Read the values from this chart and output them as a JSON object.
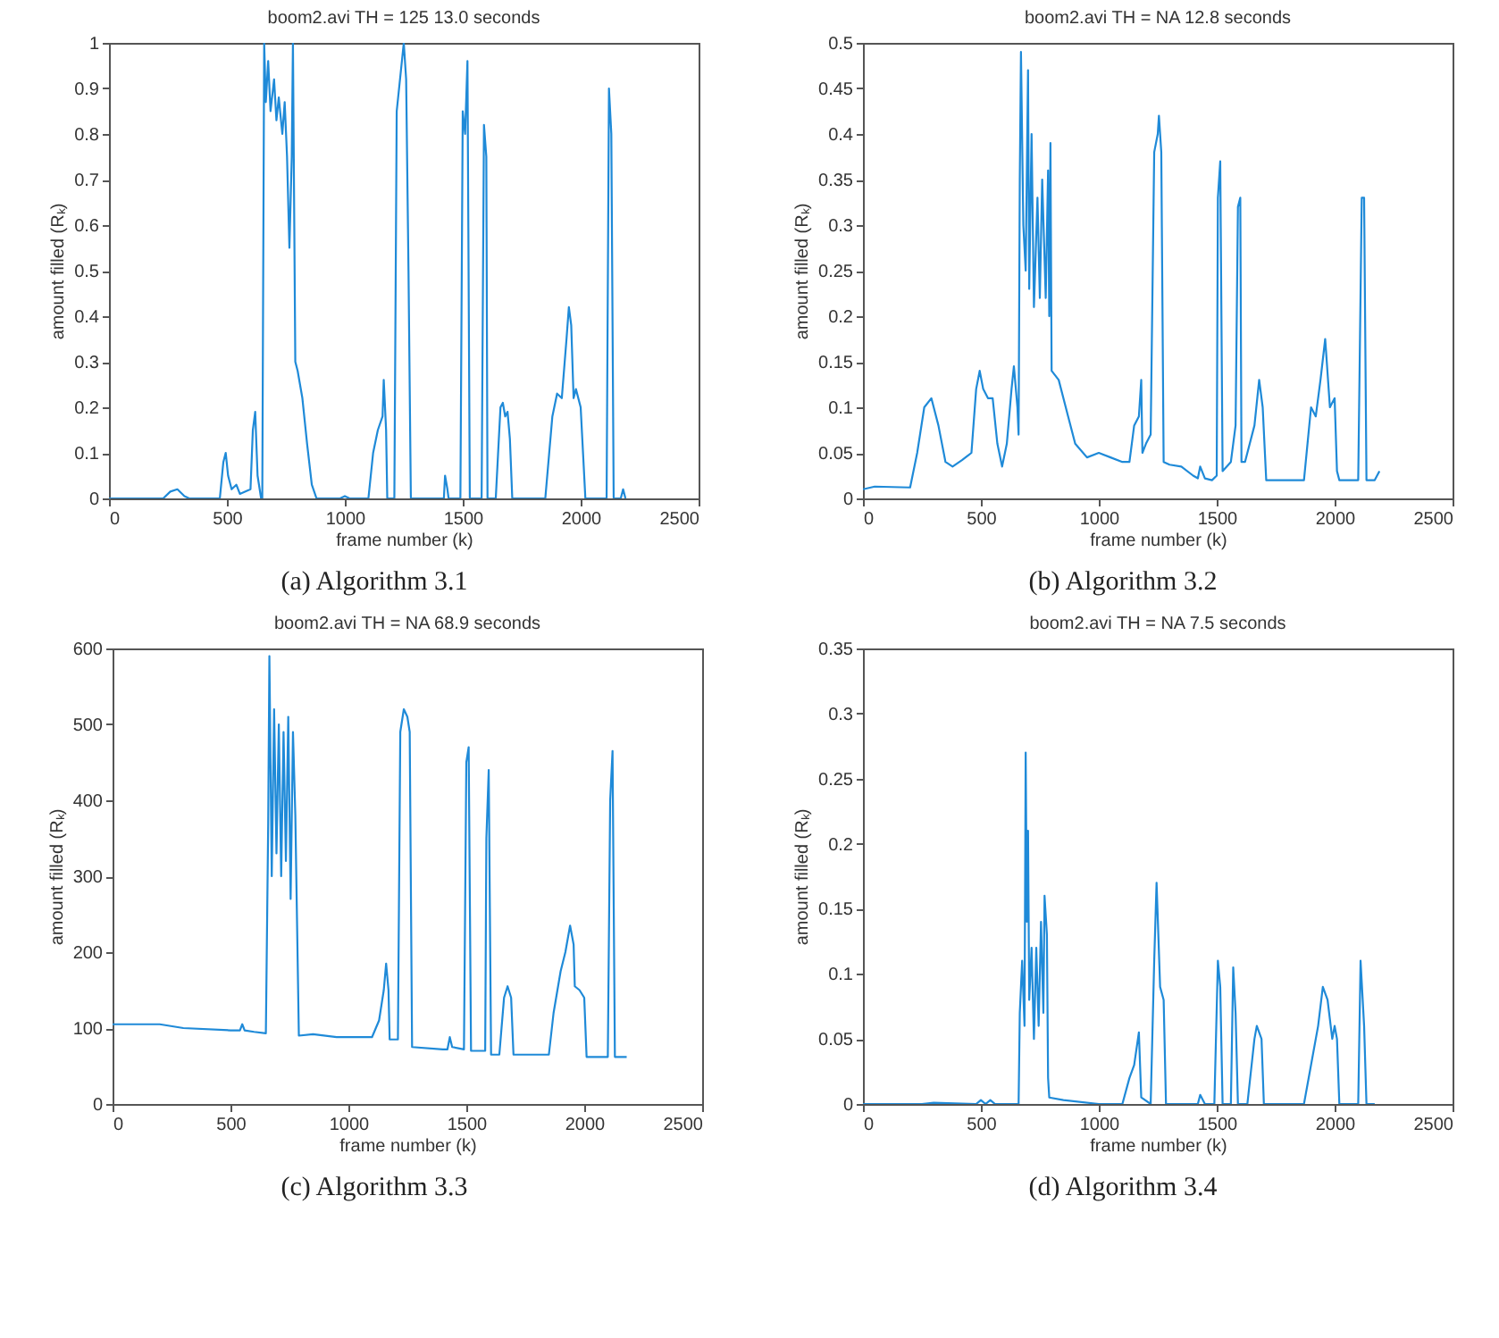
{
  "chart_data": [
    {
      "type": "line",
      "title": "boom2.avi     TH = 125     13.0 seconds",
      "xlabel": "frame number (k)",
      "ylabel": "amount filled (Rₖ)",
      "annotations": [
        "(a)  Algorithm 3.1"
      ],
      "color": "#1f8ad8",
      "xlim": [
        0,
        2500
      ],
      "xticks": [
        0,
        500,
        1000,
        1500,
        2000,
        2500
      ],
      "ylim": [
        0,
        1
      ],
      "yticks": [
        0,
        0.1,
        0.2,
        0.3,
        0.4,
        0.5,
        0.6,
        0.7,
        0.8,
        0.9,
        1
      ],
      "x": [
        0,
        230,
        260,
        290,
        320,
        340,
        470,
        485,
        495,
        505,
        520,
        540,
        555,
        600,
        610,
        620,
        630,
        645,
        650,
        658,
        665,
        675,
        685,
        700,
        710,
        720,
        735,
        745,
        755,
        765,
        775,
        780,
        790,
        800,
        820,
        840,
        860,
        880,
        980,
        1000,
        1020,
        1100,
        1120,
        1140,
        1160,
        1165,
        1175,
        1180,
        1210,
        1220,
        1240,
        1250,
        1260,
        1270,
        1280,
        1420,
        1425,
        1435,
        1440,
        1490,
        1500,
        1510,
        1520,
        1530,
        1580,
        1590,
        1600,
        1605,
        1640,
        1660,
        1670,
        1680,
        1690,
        1700,
        1710,
        1850,
        1880,
        1900,
        1920,
        1940,
        1950,
        1960,
        1970,
        1980,
        2000,
        2020,
        2110,
        2120,
        2130,
        2140,
        2170,
        2180,
        2190
      ],
      "values": [
        0,
        0,
        0.015,
        0.02,
        0.005,
        0,
        0,
        0.08,
        0.1,
        0.05,
        0.02,
        0.03,
        0.01,
        0.02,
        0.15,
        0.19,
        0.05,
        0,
        0,
        1,
        0.87,
        0.96,
        0.85,
        0.92,
        0.83,
        0.88,
        0.8,
        0.87,
        0.75,
        0.55,
        0.75,
        1,
        0.3,
        0.28,
        0.22,
        0.12,
        0.03,
        0,
        0,
        0.005,
        0,
        0,
        0.1,
        0.15,
        0.18,
        0.26,
        0.15,
        0,
        0,
        0.85,
        0.95,
        1,
        0.92,
        0.5,
        0,
        0,
        0.05,
        0.02,
        0,
        0,
        0.85,
        0.8,
        0.96,
        0,
        0,
        0.82,
        0.75,
        0,
        0,
        0.2,
        0.21,
        0.18,
        0.19,
        0.13,
        0,
        0,
        0.18,
        0.23,
        0.22,
        0.35,
        0.42,
        0.38,
        0.22,
        0.24,
        0.2,
        0,
        0,
        0.9,
        0.8,
        0,
        0,
        0.02,
        0
      ]
    },
    {
      "type": "line",
      "title": "boom2.avi     TH = NA     12.8 seconds",
      "xlabel": "frame number (k)",
      "ylabel": "amount filled (Rₖ)",
      "annotations": [
        "(b)  Algorithm 3.2"
      ],
      "color": "#1f8ad8",
      "xlim": [
        0,
        2500
      ],
      "xticks": [
        0,
        500,
        1000,
        1500,
        2000,
        2500
      ],
      "ylim": [
        0,
        0.5
      ],
      "yticks": [
        0,
        0.05,
        0.1,
        0.15,
        0.2,
        0.25,
        0.3,
        0.35,
        0.4,
        0.45,
        0.5
      ],
      "x": [
        0,
        50,
        200,
        230,
        260,
        290,
        320,
        350,
        380,
        420,
        460,
        480,
        495,
        510,
        530,
        550,
        570,
        590,
        610,
        630,
        640,
        655,
        660,
        665,
        670,
        680,
        690,
        700,
        705,
        715,
        725,
        740,
        750,
        760,
        775,
        785,
        790,
        795,
        800,
        830,
        870,
        900,
        950,
        1000,
        1050,
        1100,
        1130,
        1150,
        1170,
        1180,
        1185,
        1200,
        1220,
        1235,
        1250,
        1255,
        1265,
        1275,
        1300,
        1350,
        1400,
        1420,
        1430,
        1450,
        1480,
        1500,
        1505,
        1515,
        1525,
        1560,
        1580,
        1590,
        1600,
        1605,
        1620,
        1660,
        1680,
        1695,
        1710,
        1800,
        1870,
        1900,
        1920,
        1940,
        1960,
        1980,
        2000,
        2010,
        2020,
        2100,
        2115,
        2125,
        2135,
        2170,
        2190
      ],
      "values": [
        0.01,
        0.013,
        0.012,
        0.05,
        0.1,
        0.11,
        0.08,
        0.04,
        0.035,
        0.042,
        0.05,
        0.12,
        0.14,
        0.12,
        0.11,
        0.11,
        0.06,
        0.035,
        0.06,
        0.12,
        0.145,
        0.1,
        0.07,
        0.35,
        0.49,
        0.3,
        0.25,
        0.47,
        0.23,
        0.4,
        0.21,
        0.33,
        0.22,
        0.35,
        0.22,
        0.36,
        0.2,
        0.39,
        0.14,
        0.13,
        0.09,
        0.06,
        0.045,
        0.05,
        0.045,
        0.04,
        0.04,
        0.08,
        0.09,
        0.13,
        0.05,
        0.06,
        0.07,
        0.38,
        0.4,
        0.42,
        0.38,
        0.04,
        0.037,
        0.035,
        0.025,
        0.022,
        0.035,
        0.022,
        0.02,
        0.025,
        0.33,
        0.37,
        0.03,
        0.04,
        0.08,
        0.32,
        0.33,
        0.04,
        0.04,
        0.08,
        0.13,
        0.1,
        0.02,
        0.02,
        0.02,
        0.1,
        0.09,
        0.13,
        0.175,
        0.1,
        0.11,
        0.03,
        0.02,
        0.02,
        0.33,
        0.33,
        0.02,
        0.02,
        0.03
      ]
    },
    {
      "type": "line",
      "title": "boom2.avi     TH = NA     68.9 seconds",
      "xlabel": "frame number (k)",
      "ylabel": "amount filled (Rₖ)",
      "annotations": [
        "(c)  Algorithm 3.3"
      ],
      "color": "#1f8ad8",
      "xlim": [
        0,
        2500
      ],
      "xticks": [
        0,
        500,
        1000,
        1500,
        2000,
        2500
      ],
      "ylim": [
        0,
        600
      ],
      "yticks": [
        0,
        100,
        200,
        300,
        400,
        500,
        600
      ],
      "x": [
        0,
        200,
        300,
        500,
        540,
        550,
        560,
        600,
        650,
        660,
        665,
        675,
        685,
        695,
        705,
        715,
        725,
        735,
        745,
        755,
        765,
        775,
        790,
        850,
        950,
        1100,
        1130,
        1150,
        1160,
        1170,
        1175,
        1210,
        1220,
        1235,
        1250,
        1260,
        1270,
        1400,
        1420,
        1430,
        1440,
        1490,
        1500,
        1510,
        1520,
        1580,
        1585,
        1595,
        1605,
        1640,
        1660,
        1675,
        1690,
        1700,
        1850,
        1870,
        1900,
        1920,
        1940,
        1955,
        1960,
        1980,
        2000,
        2010,
        2100,
        2110,
        2120,
        2130,
        2180
      ],
      "values": [
        105,
        105,
        100,
        97,
        97,
        105,
        97,
        95,
        93,
        370,
        590,
        300,
        520,
        330,
        500,
        300,
        490,
        320,
        510,
        270,
        490,
        380,
        90,
        92,
        88,
        88,
        110,
        150,
        185,
        150,
        85,
        85,
        490,
        520,
        510,
        490,
        75,
        72,
        72,
        88,
        75,
        72,
        450,
        470,
        70,
        70,
        350,
        440,
        65,
        65,
        140,
        155,
        140,
        65,
        65,
        120,
        175,
        200,
        235,
        210,
        155,
        150,
        140,
        62,
        62,
        400,
        465,
        62,
        62
      ]
    },
    {
      "type": "line",
      "title": "boom2.avi     TH = NA     7.5 seconds",
      "xlabel": "frame number (k)",
      "ylabel": "amount filled (Rₖ)",
      "annotations": [
        "(d)  Algorithm 3.4"
      ],
      "color": "#1f8ad8",
      "xlim": [
        0,
        2500
      ],
      "xticks": [
        0,
        500,
        1000,
        1500,
        2000,
        2500
      ],
      "ylim": [
        0,
        0.35
      ],
      "yticks": [
        0,
        0.05,
        0.1,
        0.15,
        0.2,
        0.25,
        0.3,
        0.35
      ],
      "x": [
        0,
        250,
        300,
        480,
        500,
        520,
        540,
        560,
        660,
        665,
        675,
        685,
        690,
        695,
        700,
        705,
        715,
        725,
        735,
        745,
        755,
        765,
        770,
        780,
        785,
        790,
        850,
        1000,
        1100,
        1130,
        1150,
        1170,
        1180,
        1220,
        1235,
        1245,
        1260,
        1275,
        1285,
        1420,
        1430,
        1450,
        1490,
        1505,
        1515,
        1525,
        1560,
        1570,
        1580,
        1590,
        1630,
        1660,
        1670,
        1690,
        1700,
        1870,
        1900,
        1930,
        1950,
        1970,
        1990,
        2000,
        2010,
        2020,
        2100,
        2110,
        2125,
        2135,
        2170
      ],
      "values": [
        0,
        0,
        0.001,
        0,
        0.003,
        0,
        0.003,
        0,
        0,
        0.07,
        0.11,
        0.06,
        0.27,
        0.14,
        0.21,
        0.08,
        0.12,
        0.05,
        0.12,
        0.06,
        0.14,
        0.07,
        0.16,
        0.13,
        0.02,
        0.005,
        0.003,
        0,
        0,
        0.02,
        0.03,
        0.055,
        0.005,
        0,
        0.11,
        0.17,
        0.09,
        0.08,
        0,
        0,
        0.007,
        0,
        0,
        0.11,
        0.09,
        0,
        0,
        0.105,
        0.07,
        0,
        0,
        0.05,
        0.06,
        0.05,
        0,
        0,
        0.03,
        0.06,
        0.09,
        0.08,
        0.05,
        0.06,
        0.05,
        0,
        0,
        0.11,
        0.06,
        0,
        0
      ]
    }
  ]
}
